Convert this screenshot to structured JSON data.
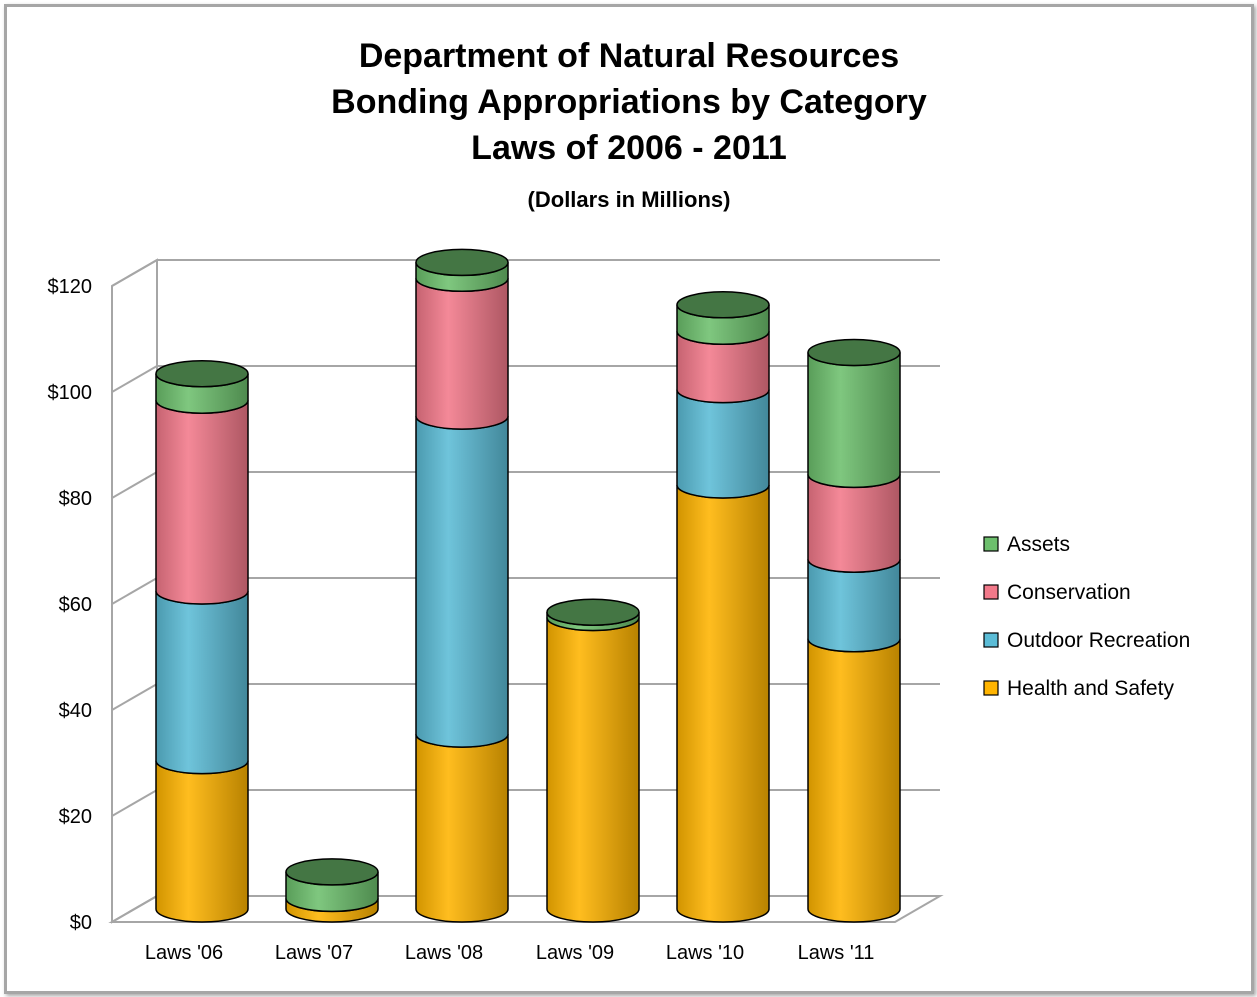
{
  "chart_data": {
    "type": "bar",
    "stacked": true,
    "style": "3d-cylinder",
    "title_lines": [
      "Department of Natural Resources",
      "Bonding Appropriations by Category",
      "Laws of 2006 - 2011"
    ],
    "subtitle": "(Dollars in Millions)",
    "xlabel": "",
    "ylabel": "",
    "categories": [
      "Laws '06",
      "Laws '07",
      "Laws '08",
      "Laws '09",
      "Laws '10",
      "Laws '11"
    ],
    "y_ticks": [
      "$0",
      "$20",
      "$40",
      "$60",
      "$80",
      "$100",
      "$120"
    ],
    "ylim": [
      0,
      120
    ],
    "grid": true,
    "legend_position": "right",
    "series": [
      {
        "name": "Health and Safety",
        "color": "#ffb400",
        "values": [
          28,
          2,
          33,
          55,
          80,
          51
        ]
      },
      {
        "name": "Outdoor Recreation",
        "color": "#5bbcd6",
        "values": [
          32,
          0,
          60,
          0,
          18,
          15
        ]
      },
      {
        "name": "Conservation",
        "color": "#f2798a",
        "values": [
          36,
          0,
          26,
          0,
          11,
          16
        ]
      },
      {
        "name": "Assets",
        "color": "#6dbf6d",
        "values": [
          5,
          5,
          3,
          1,
          5,
          23
        ]
      }
    ]
  }
}
